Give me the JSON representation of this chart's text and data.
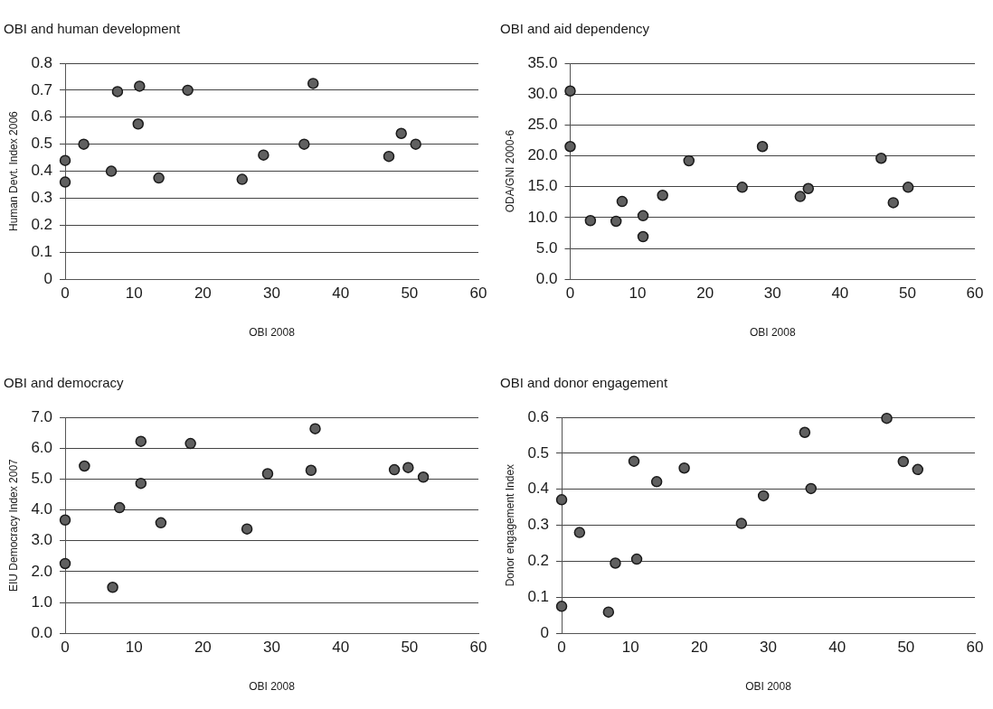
{
  "chart_data": [
    {
      "type": "scatter",
      "title": "OBI and human development",
      "xlabel": "OBI 2008",
      "ylabel": "Human Devt. Index 2006",
      "marker": "circle",
      "grid": "y",
      "xlim": [
        0,
        60
      ],
      "xticks": [
        0,
        10,
        20,
        30,
        40,
        50,
        60
      ],
      "ylim": [
        0,
        0.8
      ],
      "yticks": [
        0,
        0.1,
        0.2,
        0.3,
        0.4,
        0.5,
        0.6,
        0.7,
        0.8
      ],
      "series": [
        {
          "color": "#606060",
          "x": [
            0,
            0,
            2.7,
            6.7,
            7.6,
            10.6,
            10.8,
            13.6,
            17.8,
            25.7,
            28.8,
            34.7,
            36.0,
            47.0,
            48.8,
            50.9
          ],
          "values": [
            0.44,
            0.36,
            0.5,
            0.4,
            0.695,
            0.575,
            0.715,
            0.375,
            0.7,
            0.37,
            0.46,
            0.5,
            0.725,
            0.455,
            0.54,
            0.5
          ]
        }
      ]
    },
    {
      "type": "scatter",
      "title": "OBI and aid dependency",
      "xlabel": "OBI 2008",
      "ylabel": "ODA/GNI 2000-6",
      "marker": "circle",
      "grid": "y",
      "xlim": [
        0,
        60
      ],
      "xticks": [
        0,
        10,
        20,
        30,
        40,
        50,
        60
      ],
      "ylim": [
        0,
        35
      ],
      "yticks": [
        {
          "value": 0,
          "label": "0.0"
        },
        {
          "value": 5,
          "label": "5.0"
        },
        {
          "value": 10,
          "label": "10.0"
        },
        {
          "value": 15,
          "label": "15.0"
        },
        {
          "value": 20,
          "label": "20.0"
        },
        {
          "value": 25,
          "label": "25.0"
        },
        {
          "value": 30,
          "label": "30.0"
        },
        {
          "value": 35,
          "label": "35.0"
        }
      ],
      "series": [
        {
          "color": "#606060",
          "x": [
            0,
            0,
            3.0,
            6.8,
            7.7,
            10.8,
            10.8,
            13.7,
            17.6,
            25.5,
            28.5,
            34.1,
            35.3,
            46.1,
            47.9,
            50.1
          ],
          "values": [
            30.5,
            21.5,
            9.5,
            9.4,
            12.6,
            10.3,
            6.9,
            13.6,
            19.2,
            14.9,
            21.5,
            13.4,
            14.7,
            19.6,
            12.4,
            14.9
          ]
        }
      ]
    },
    {
      "type": "scatter",
      "title": "OBI and democracy",
      "xlabel": "OBI 2008",
      "ylabel": "EIU Democracy Index 2007",
      "marker": "circle",
      "grid": "y",
      "xlim": [
        0,
        60
      ],
      "xticks": [
        0,
        10,
        20,
        30,
        40,
        50,
        60
      ],
      "ylim": [
        0,
        7
      ],
      "yticks": [
        {
          "value": 0,
          "label": "0.0"
        },
        {
          "value": 1,
          "label": "1.0"
        },
        {
          "value": 2,
          "label": "2.0"
        },
        {
          "value": 3,
          "label": "3.0"
        },
        {
          "value": 4,
          "label": "4.0"
        },
        {
          "value": 5,
          "label": "5.0"
        },
        {
          "value": 6,
          "label": "6.0"
        },
        {
          "value": 7,
          "label": "7.0"
        }
      ],
      "series": [
        {
          "color": "#606060",
          "x": [
            0,
            0,
            2.8,
            6.9,
            7.9,
            11.0,
            11.0,
            13.9,
            18.2,
            26.4,
            29.4,
            35.7,
            36.3,
            47.8,
            49.8,
            52.0
          ],
          "values": [
            3.67,
            2.26,
            5.42,
            1.49,
            4.07,
            6.22,
            4.86,
            3.58,
            6.15,
            3.38,
            5.17,
            5.28,
            6.63,
            5.3,
            5.37,
            5.06
          ]
        }
      ]
    },
    {
      "type": "scatter",
      "title": "OBI and donor engagement",
      "xlabel": "OBI 2008",
      "ylabel": "Donor engagement Index",
      "marker": "circle",
      "grid": "y",
      "xlim": [
        0,
        60
      ],
      "xticks": [
        0,
        10,
        20,
        30,
        40,
        50,
        60
      ],
      "ylim": [
        0,
        0.6
      ],
      "yticks": [
        0,
        0.1,
        0.2,
        0.3,
        0.4,
        0.5,
        0.6
      ],
      "series": [
        {
          "color": "#606060",
          "x": [
            0,
            0,
            2.6,
            6.8,
            7.8,
            10.5,
            10.9,
            13.8,
            17.8,
            26.1,
            29.3,
            35.3,
            36.2,
            47.2,
            49.6,
            51.7
          ],
          "values": [
            0.371,
            0.075,
            0.28,
            0.059,
            0.195,
            0.478,
            0.206,
            0.421,
            0.459,
            0.305,
            0.382,
            0.558,
            0.402,
            0.597,
            0.477,
            0.455
          ]
        }
      ]
    }
  ]
}
